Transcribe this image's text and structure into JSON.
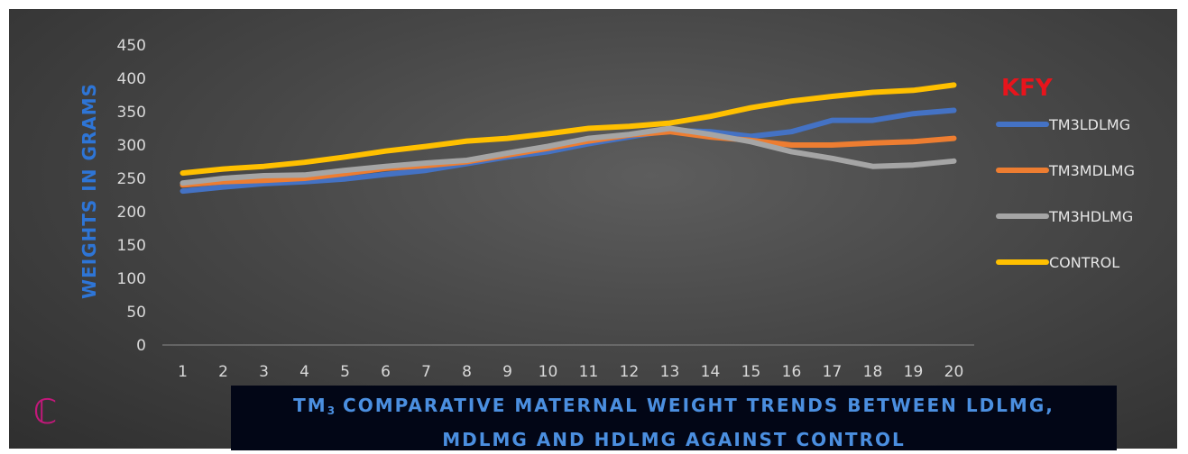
{
  "chart_data": {
    "type": "line",
    "title": "TM3 COMPARATIVE MATERNAL WEIGHT TRENDS BETWEEN LDLMG, MDLMG AND HDLMG AGAINST CONTROL",
    "title_parts": {
      "prefix": "TM",
      "subscript": "3",
      "line1_rest": " COMPARATIVE MATERNAL WEIGHT TRENDS BETWEEN LDLMG,",
      "line2": "MDLMG AND HDLMG AGAINST CONTROL"
    },
    "xlabel": "",
    "ylabel": "WEIGHTS IN GRAMS",
    "x": [
      1,
      2,
      3,
      4,
      5,
      6,
      7,
      8,
      9,
      10,
      11,
      12,
      13,
      14,
      15,
      16,
      17,
      18,
      19,
      20
    ],
    "ylim": [
      0,
      450
    ],
    "yticks": [
      0,
      50,
      100,
      150,
      200,
      250,
      300,
      350,
      400,
      450
    ],
    "grid": false,
    "legend_title": "KFY",
    "legend_position": "right",
    "series": [
      {
        "name": "TM3LDLMG",
        "color": "#4472c4",
        "values": [
          231,
          237,
          242,
          245,
          249,
          256,
          262,
          272,
          282,
          290,
          302,
          312,
          322,
          320,
          313,
          320,
          337,
          337,
          347,
          352
        ]
      },
      {
        "name": "TM3MDLMG",
        "color": "#ed7d31",
        "values": [
          240,
          245,
          247,
          250,
          257,
          265,
          269,
          275,
          285,
          295,
          306,
          315,
          320,
          312,
          307,
          300,
          300,
          303,
          305,
          310
        ]
      },
      {
        "name": "TM3HDLMG",
        "color": "#a5a5a5",
        "values": [
          243,
          250,
          254,
          255,
          262,
          268,
          273,
          277,
          288,
          298,
          310,
          316,
          325,
          316,
          305,
          290,
          280,
          268,
          270,
          276
        ]
      },
      {
        "name": "CONTROL",
        "color": "#ffc000",
        "values": [
          258,
          264,
          268,
          274,
          282,
          291,
          298,
          306,
          310,
          317,
          325,
          328,
          333,
          343,
          356,
          366,
          373,
          379,
          382,
          390
        ]
      }
    ]
  },
  "logo": {
    "glyph": "ℂ",
    "color": "#c2187a"
  }
}
